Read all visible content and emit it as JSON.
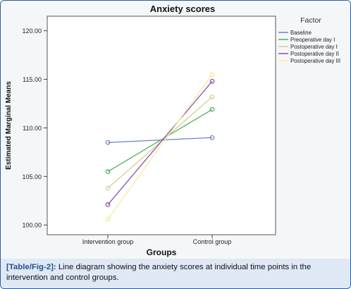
{
  "chart_data": {
    "type": "line",
    "title": "Anxiety scores",
    "xlabel": "Groups",
    "ylabel": "Estimated Marginal Means",
    "categories": [
      "Intervention group",
      "Control group"
    ],
    "ylim": [
      99.0,
      121.5
    ],
    "yticks": [
      "100.00",
      "105.00",
      "110.00",
      "115.00",
      "120.00"
    ],
    "ytick_values": [
      100,
      105,
      110,
      115,
      120
    ],
    "grid": false,
    "legend_title": "Factor",
    "legend_position": "top-right",
    "series": [
      {
        "name": "Baseline",
        "color": "#7080c8",
        "values": [
          108.5,
          109.0
        ]
      },
      {
        "name": "Preoperative day I",
        "color": "#50b060",
        "values": [
          105.5,
          111.9
        ]
      },
      {
        "name": "Postoperative day I",
        "color": "#d8d08c",
        "values": [
          103.8,
          113.2
        ]
      },
      {
        "name": "Postoperative day II",
        "color": "#9050a8",
        "values": [
          102.1,
          114.8
        ]
      },
      {
        "name": "Postoperative day III",
        "color": "#f4eca0",
        "values": [
          100.6,
          115.5
        ]
      }
    ]
  },
  "caption": {
    "label": "[Table/Fig-2]:",
    "text": " Line diagram showing the anxiety scores at individual time points in the intervention and control groups."
  }
}
